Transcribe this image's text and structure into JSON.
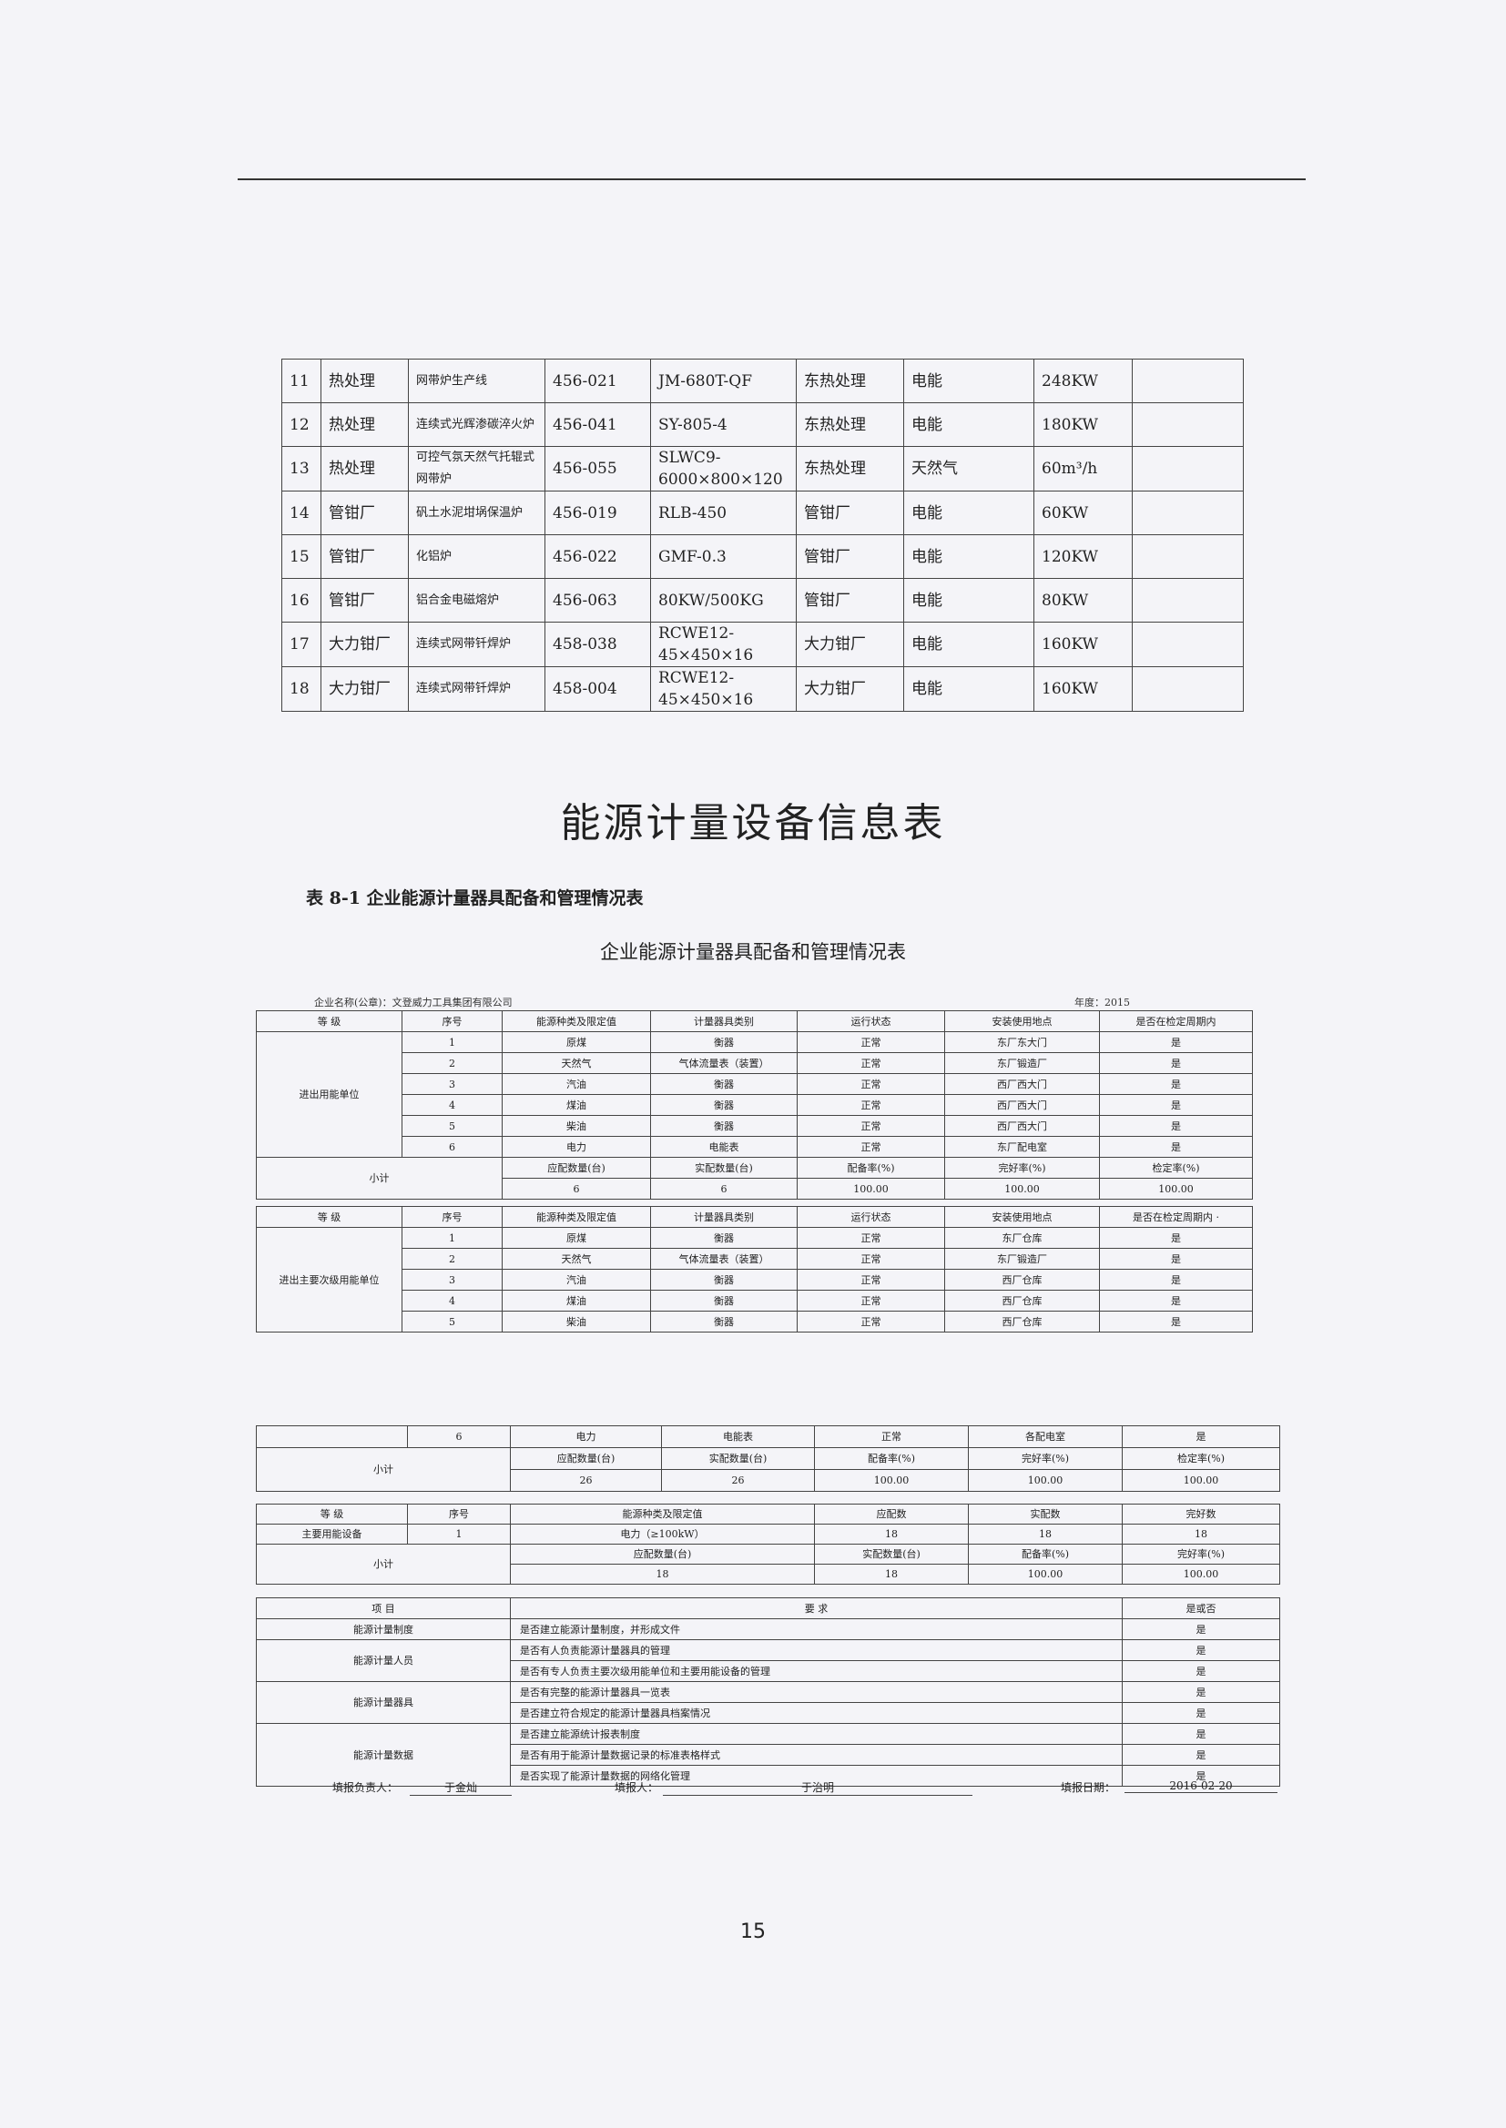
{
  "main_title": "能源计量设备信息表",
  "caption": "表 8-1 企业能源计量器具配备和管理情况表",
  "subtitle": "企业能源计量器具配备和管理情况表",
  "company_label": "企业名称(公章)：文登威力工具集团有限公司",
  "year_label": "年度：2015",
  "equipment_table": {
    "rows": [
      [
        "11",
        "热处理",
        "网带炉生产线",
        "456-021",
        "JM-680T-QF",
        "东热处理",
        "电能",
        "248KW",
        ""
      ],
      [
        "12",
        "热处理",
        "连续式光辉渗碳淬火炉",
        "456-041",
        "SY-805-4",
        "东热处理",
        "电能",
        "180KW",
        ""
      ],
      [
        "13",
        "热处理",
        "可控气氛天然气托辊式网带炉",
        "456-055",
        "SLWC9-6000×800×120",
        "东热处理",
        "天然气",
        "60m³/h",
        ""
      ],
      [
        "14",
        "管钳厂",
        "矾土水泥坩埚保温炉",
        "456-019",
        "RLB-450",
        "管钳厂",
        "电能",
        "60KW",
        ""
      ],
      [
        "15",
        "管钳厂",
        "化铝炉",
        "456-022",
        "GMF-0.3",
        "管钳厂",
        "电能",
        "120KW",
        ""
      ],
      [
        "16",
        "管钳厂",
        "铝合金电磁熔炉",
        "456-063",
        "80KW/500KG",
        "管钳厂",
        "电能",
        "80KW",
        ""
      ],
      [
        "17",
        "大力钳厂",
        "连续式网带钎焊炉",
        "458-038",
        "RCWE12-45×450×16",
        "大力钳厂",
        "电能",
        "160KW",
        ""
      ],
      [
        "18",
        "大力钳厂",
        "连续式网带钎焊炉",
        "458-004",
        "RCWE12-45×450×16",
        "大力钳厂",
        "电能",
        "160KW",
        ""
      ]
    ]
  },
  "table_a": {
    "rows": [
      [
        {
          "t": "等 级"
        },
        {
          "t": "序号"
        },
        {
          "t": "能源种类及限定值"
        },
        {
          "t": "计量器具类别"
        },
        {
          "t": "运行状态"
        },
        {
          "t": "安装使用地点"
        },
        {
          "t": "是否在检定周期内"
        }
      ],
      [
        {
          "t": "进出用能单位",
          "rs": 6
        },
        {
          "t": "1"
        },
        {
          "t": "原煤"
        },
        {
          "t": "衡器"
        },
        {
          "t": "正常"
        },
        {
          "t": "东厂东大门"
        },
        {
          "t": "是"
        }
      ],
      [
        {
          "t": "2"
        },
        {
          "t": "天然气"
        },
        {
          "t": "气体流量表（装置）"
        },
        {
          "t": "正常"
        },
        {
          "t": "东厂锻造厂"
        },
        {
          "t": "是"
        }
      ],
      [
        {
          "t": "3"
        },
        {
          "t": "汽油"
        },
        {
          "t": "衡器"
        },
        {
          "t": "正常"
        },
        {
          "t": "西厂西大门"
        },
        {
          "t": "是"
        }
      ],
      [
        {
          "t": "4"
        },
        {
          "t": "煤油"
        },
        {
          "t": "衡器"
        },
        {
          "t": "正常"
        },
        {
          "t": "西厂西大门"
        },
        {
          "t": "是"
        }
      ],
      [
        {
          "t": "5"
        },
        {
          "t": "柴油"
        },
        {
          "t": "衡器"
        },
        {
          "t": "正常"
        },
        {
          "t": "西厂西大门"
        },
        {
          "t": "是"
        }
      ],
      [
        {
          "t": "6"
        },
        {
          "t": "电力"
        },
        {
          "t": "电能表"
        },
        {
          "t": "正常"
        },
        {
          "t": "东厂配电室"
        },
        {
          "t": "是"
        }
      ],
      [
        {
          "t": "小计",
          "cs": 2,
          "rs": 2
        },
        {
          "t": "应配数量(台)"
        },
        {
          "t": "实配数量(台)"
        },
        {
          "t": "配备率(%)"
        },
        {
          "t": "完好率(%)"
        },
        {
          "t": "检定率(%)"
        }
      ],
      [
        {
          "t": "6"
        },
        {
          "t": "6"
        },
        {
          "t": "100.00"
        },
        {
          "t": "100.00"
        },
        {
          "t": "100.00"
        }
      ]
    ]
  },
  "table_b": {
    "rows": [
      [
        {
          "t": "等 级"
        },
        {
          "t": "序号"
        },
        {
          "t": "能源种类及限定值"
        },
        {
          "t": "计量器具类别"
        },
        {
          "t": "运行状态"
        },
        {
          "t": "安装使用地点"
        },
        {
          "t": "是否在检定周期内 ·"
        }
      ],
      [
        {
          "t": "进出主要次级用能单位",
          "rs": 5
        },
        {
          "t": "1"
        },
        {
          "t": "原煤"
        },
        {
          "t": "衡器"
        },
        {
          "t": "正常"
        },
        {
          "t": "东厂仓库"
        },
        {
          "t": "是"
        }
      ],
      [
        {
          "t": "2"
        },
        {
          "t": "天然气"
        },
        {
          "t": "气体流量表（装置）"
        },
        {
          "t": "正常"
        },
        {
          "t": "东厂锻造厂"
        },
        {
          "t": "是"
        }
      ],
      [
        {
          "t": "3"
        },
        {
          "t": "汽油"
        },
        {
          "t": "衡器"
        },
        {
          "t": "正常"
        },
        {
          "t": "西厂仓库"
        },
        {
          "t": "是"
        }
      ],
      [
        {
          "t": "4"
        },
        {
          "t": "煤油"
        },
        {
          "t": "衡器"
        },
        {
          "t": "正常"
        },
        {
          "t": "西厂仓库"
        },
        {
          "t": "是"
        }
      ],
      [
        {
          "t": "5"
        },
        {
          "t": "柴油"
        },
        {
          "t": "衡器"
        },
        {
          "t": "正常"
        },
        {
          "t": "西厂仓库"
        },
        {
          "t": "是"
        }
      ]
    ]
  },
  "table_c": {
    "rows": [
      [
        {
          "t": ""
        },
        {
          "t": "6"
        },
        {
          "t": "电力"
        },
        {
          "t": "电能表"
        },
        {
          "t": "正常"
        },
        {
          "t": "各配电室"
        },
        {
          "t": "是"
        }
      ],
      [
        {
          "t": "小计",
          "cs": 2,
          "rs": 2
        },
        {
          "t": "应配数量(台)"
        },
        {
          "t": "实配数量(台)"
        },
        {
          "t": "配备率(%)"
        },
        {
          "t": "完好率(%)"
        },
        {
          "t": "检定率(%)"
        }
      ],
      [
        {
          "t": "26"
        },
        {
          "t": "26"
        },
        {
          "t": "100.00"
        },
        {
          "t": "100.00"
        },
        {
          "t": "100.00"
        }
      ]
    ]
  },
  "table_d": {
    "rows": [
      [
        {
          "t": "等 级"
        },
        {
          "t": "序号"
        },
        {
          "t": "能源种类及限定值",
          "cs": 2
        },
        {
          "t": "应配数"
        },
        {
          "t": "实配数"
        },
        {
          "t": "完好数"
        }
      ],
      [
        {
          "t": "主要用能设备"
        },
        {
          "t": "1"
        },
        {
          "t": "电力（≥100kW）",
          "cs": 2
        },
        {
          "t": "18"
        },
        {
          "t": "18"
        },
        {
          "t": "18"
        }
      ],
      [
        {
          "t": "小计",
          "cs": 2,
          "rs": 2
        },
        {
          "t": "应配数量(台)",
          "cs": 2
        },
        {
          "t": "实配数量(台)"
        },
        {
          "t": "配备率(%)"
        },
        {
          "t": "完好率(%)"
        }
      ],
      [
        {
          "t": "18",
          "cs": 2
        },
        {
          "t": "18"
        },
        {
          "t": "100.00"
        },
        {
          "t": "100.00"
        }
      ]
    ]
  },
  "table_e": {
    "rows": [
      [
        {
          "t": "项 目"
        },
        {
          "t": "要 求",
          "l": 0
        },
        {
          "t": "是或否"
        }
      ],
      [
        {
          "t": "能源计量制度"
        },
        {
          "t": "是否建立能源计量制度，并形成文件",
          "l": 1
        },
        {
          "t": "是"
        }
      ],
      [
        {
          "t": "能源计量人员",
          "rs": 2
        },
        {
          "t": "是否有人负责能源计量器具的管理",
          "l": 1
        },
        {
          "t": "是"
        }
      ],
      [
        {
          "t": "是否有专人负责主要次级用能单位和主要用能设备的管理",
          "l": 1
        },
        {
          "t": "是"
        }
      ],
      [
        {
          "t": "能源计量器具",
          "rs": 2
        },
        {
          "t": "是否有完整的能源计量器具一览表",
          "l": 1
        },
        {
          "t": "是"
        }
      ],
      [
        {
          "t": "是否建立符合规定的能源计量器具档案情况",
          "l": 1
        },
        {
          "t": "是"
        }
      ],
      [
        {
          "t": "能源计量数据",
          "rs": 3
        },
        {
          "t": "是否建立能源统计报表制度",
          "l": 1
        },
        {
          "t": "是"
        }
      ],
      [
        {
          "t": "是否有用于能源计量数据记录的标准表格样式",
          "l": 1
        },
        {
          "t": "是"
        }
      ],
      [
        {
          "t": "是否实现了能源计量数据的网络化管理",
          "l": 1
        },
        {
          "t": "是"
        }
      ]
    ]
  },
  "footer": {
    "responsible_label": "填报负责人：",
    "responsible_value": "于金灿",
    "filler_label": "填报人：",
    "filler_value": "于治明",
    "date_label": "填报日期：",
    "date_value": "2016-02-20"
  },
  "page_number": "15"
}
